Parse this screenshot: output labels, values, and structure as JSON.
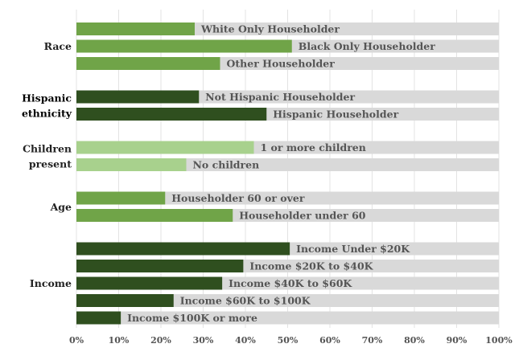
{
  "chart_data": {
    "type": "bar",
    "orientation": "horizontal",
    "title": "",
    "xlabel": "",
    "ylabel": "",
    "xlim": [
      0,
      100
    ],
    "x_ticks": [
      "0%",
      "10%",
      "20%",
      "30%",
      "40%",
      "50%",
      "60%",
      "70%",
      "80%",
      "90%",
      "100%"
    ],
    "grid": true,
    "background_bar_color": "#d9d9d9",
    "groups": [
      {
        "label": "Race",
        "color": "#70a448",
        "bars": [
          {
            "label": "White Only Householder",
            "value": 28
          },
          {
            "label": "Black Only Householder",
            "value": 51
          },
          {
            "label": "Other Householder",
            "value": 34
          }
        ]
      },
      {
        "label": "Hispanic ethnicity",
        "color": "#2f4f1f",
        "bars": [
          {
            "label": "Not Hispanic Householder",
            "value": 29
          },
          {
            "label": "Hispanic Householder",
            "value": 45
          }
        ]
      },
      {
        "label": "Children present",
        "color": "#a8d18d",
        "bars": [
          {
            "label": "1 or more children",
            "value": 42
          },
          {
            "label": "No children",
            "value": 26
          }
        ]
      },
      {
        "label": "Age",
        "color": "#70a448",
        "bars": [
          {
            "label": "Householder 60 or over",
            "value": 21
          },
          {
            "label": "Householder under 60",
            "value": 37
          }
        ]
      },
      {
        "label": "Income",
        "color": "#2f4f1f",
        "bars": [
          {
            "label": "Income Under $20K",
            "value": 50.5
          },
          {
            "label": "Income $20K to $40K",
            "value": 39.5
          },
          {
            "label": "Income $40K to $60K",
            "value": 34.5
          },
          {
            "label": "Income $60K to $100K",
            "value": 23
          },
          {
            "label": "Income $100K or more",
            "value": 10.5
          }
        ]
      }
    ]
  }
}
